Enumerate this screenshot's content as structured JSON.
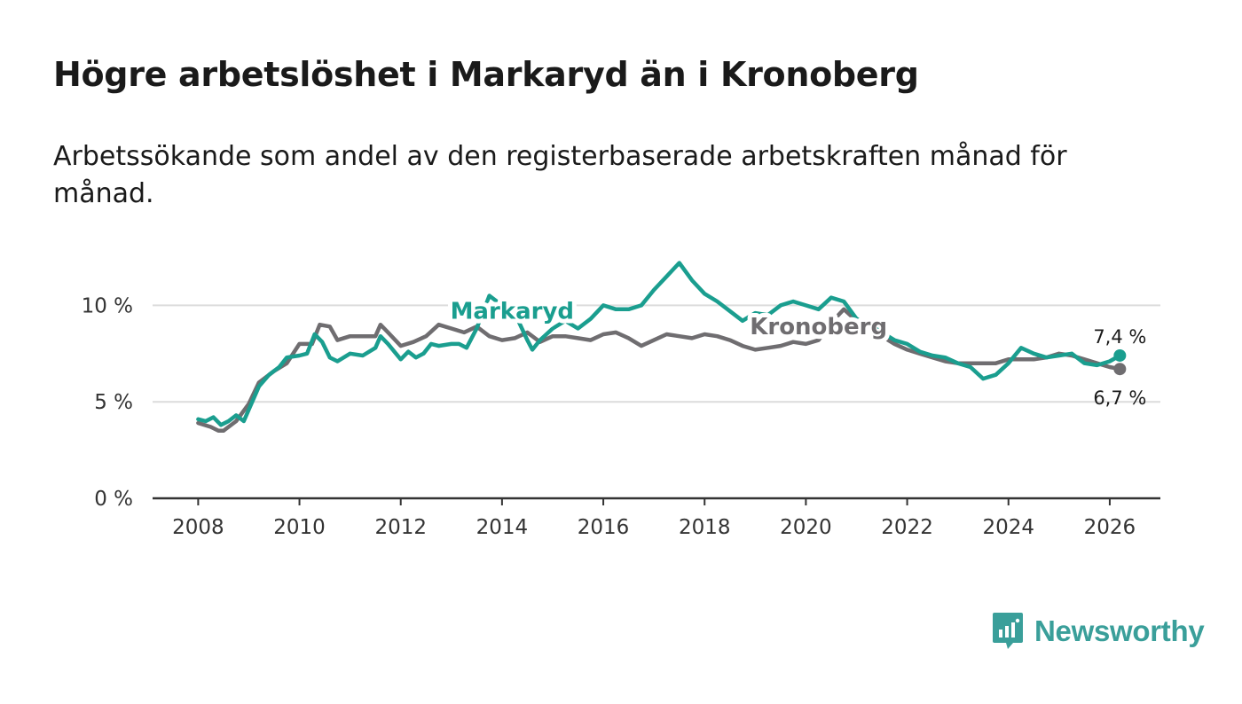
{
  "title": "Högre arbetslöshet i Markaryd än i Kronoberg",
  "subtitle": "Arbetssökande som andel av den registerbaserade arbetskraften månad för månad.",
  "brand": {
    "name": "Newsworthy",
    "icon": "newsworthy-logo-icon",
    "color": "#3a9f9a"
  },
  "chart_data": {
    "type": "line",
    "title": "Högre arbetslöshet i Markaryd än i Kronoberg",
    "xlabel": "",
    "ylabel": "",
    "ylim": [
      0,
      12.5
    ],
    "xlim": [
      2007.1,
      2027.0
    ],
    "grid": true,
    "y_ticks": [
      {
        "value": 0,
        "label": "0 %"
      },
      {
        "value": 5,
        "label": "5 %"
      },
      {
        "value": 10,
        "label": "10 %"
      }
    ],
    "x_ticks": [
      {
        "value": 2008,
        "label": "2008"
      },
      {
        "value": 2010,
        "label": "2010"
      },
      {
        "value": 2012,
        "label": "2012"
      },
      {
        "value": 2014,
        "label": "2014"
      },
      {
        "value": 2016,
        "label": "2016"
      },
      {
        "value": 2018,
        "label": "2018"
      },
      {
        "value": 2020,
        "label": "2020"
      },
      {
        "value": 2022,
        "label": "2022"
      },
      {
        "value": 2024,
        "label": "2024"
      },
      {
        "value": 2026,
        "label": "2026"
      }
    ],
    "series": [
      {
        "name": "Kronoberg",
        "label": "Kronoberg",
        "color": "#6f6d70",
        "end_label": "6,7 %",
        "label_at": [
          2020.25,
          8.5
        ],
        "points": [
          [
            2008.0,
            3.9
          ],
          [
            2008.25,
            3.7
          ],
          [
            2008.4,
            3.5
          ],
          [
            2008.5,
            3.5
          ],
          [
            2008.75,
            4.0
          ],
          [
            2009.0,
            4.9
          ],
          [
            2009.2,
            6.0
          ],
          [
            2009.5,
            6.6
          ],
          [
            2009.75,
            7.0
          ],
          [
            2010.0,
            8.0
          ],
          [
            2010.25,
            8.0
          ],
          [
            2010.4,
            9.0
          ],
          [
            2010.6,
            8.9
          ],
          [
            2010.75,
            8.2
          ],
          [
            2011.0,
            8.4
          ],
          [
            2011.25,
            8.4
          ],
          [
            2011.5,
            8.4
          ],
          [
            2011.6,
            9.0
          ],
          [
            2011.75,
            8.6
          ],
          [
            2012.0,
            7.9
          ],
          [
            2012.25,
            8.1
          ],
          [
            2012.5,
            8.4
          ],
          [
            2012.75,
            9.0
          ],
          [
            2013.0,
            8.8
          ],
          [
            2013.25,
            8.6
          ],
          [
            2013.5,
            8.9
          ],
          [
            2013.75,
            8.4
          ],
          [
            2014.0,
            8.2
          ],
          [
            2014.25,
            8.3
          ],
          [
            2014.5,
            8.6
          ],
          [
            2014.75,
            8.1
          ],
          [
            2015.0,
            8.4
          ],
          [
            2015.25,
            8.4
          ],
          [
            2015.5,
            8.3
          ],
          [
            2015.75,
            8.2
          ],
          [
            2016.0,
            8.5
          ],
          [
            2016.25,
            8.6
          ],
          [
            2016.5,
            8.3
          ],
          [
            2016.75,
            7.9
          ],
          [
            2017.0,
            8.2
          ],
          [
            2017.25,
            8.5
          ],
          [
            2017.5,
            8.4
          ],
          [
            2017.75,
            8.3
          ],
          [
            2018.0,
            8.5
          ],
          [
            2018.25,
            8.4
          ],
          [
            2018.5,
            8.2
          ],
          [
            2018.75,
            7.9
          ],
          [
            2019.0,
            7.7
          ],
          [
            2019.25,
            7.8
          ],
          [
            2019.5,
            7.9
          ],
          [
            2019.75,
            8.1
          ],
          [
            2020.0,
            8.0
          ],
          [
            2020.25,
            8.2
          ],
          [
            2020.5,
            9.1
          ],
          [
            2020.75,
            9.8
          ],
          [
            2021.0,
            9.2
          ],
          [
            2021.25,
            9.0
          ],
          [
            2021.5,
            8.4
          ],
          [
            2021.75,
            8.0
          ],
          [
            2022.0,
            7.7
          ],
          [
            2022.25,
            7.5
          ],
          [
            2022.5,
            7.3
          ],
          [
            2022.75,
            7.1
          ],
          [
            2023.0,
            7.0
          ],
          [
            2023.25,
            7.0
          ],
          [
            2023.5,
            7.0
          ],
          [
            2023.75,
            7.0
          ],
          [
            2024.0,
            7.2
          ],
          [
            2024.25,
            7.2
          ],
          [
            2024.5,
            7.2
          ],
          [
            2024.75,
            7.3
          ],
          [
            2025.0,
            7.5
          ],
          [
            2025.25,
            7.4
          ],
          [
            2025.5,
            7.2
          ],
          [
            2025.75,
            7.0
          ],
          [
            2026.0,
            6.8
          ],
          [
            2026.2,
            6.7
          ]
        ]
      },
      {
        "name": "Markaryd",
        "label": "Markaryd",
        "color": "#1a9e8f",
        "end_label": "7,4 %",
        "label_at": [
          2014.2,
          9.3
        ],
        "points": [
          [
            2008.0,
            4.1
          ],
          [
            2008.15,
            4.0
          ],
          [
            2008.3,
            4.2
          ],
          [
            2008.45,
            3.8
          ],
          [
            2008.6,
            4.0
          ],
          [
            2008.75,
            4.3
          ],
          [
            2008.9,
            4.0
          ],
          [
            2009.0,
            4.6
          ],
          [
            2009.2,
            5.8
          ],
          [
            2009.4,
            6.4
          ],
          [
            2009.6,
            6.8
          ],
          [
            2009.75,
            7.3
          ],
          [
            2010.0,
            7.4
          ],
          [
            2010.15,
            7.5
          ],
          [
            2010.3,
            8.5
          ],
          [
            2010.45,
            8.1
          ],
          [
            2010.6,
            7.3
          ],
          [
            2010.75,
            7.1
          ],
          [
            2011.0,
            7.5
          ],
          [
            2011.25,
            7.4
          ],
          [
            2011.5,
            7.8
          ],
          [
            2011.6,
            8.4
          ],
          [
            2011.75,
            8.0
          ],
          [
            2012.0,
            7.2
          ],
          [
            2012.15,
            7.6
          ],
          [
            2012.3,
            7.3
          ],
          [
            2012.45,
            7.5
          ],
          [
            2012.6,
            8.0
          ],
          [
            2012.75,
            7.9
          ],
          [
            2013.0,
            8.0
          ],
          [
            2013.15,
            8.0
          ],
          [
            2013.3,
            7.8
          ],
          [
            2013.5,
            8.8
          ],
          [
            2013.75,
            10.5
          ],
          [
            2014.0,
            10.0
          ],
          [
            2014.25,
            9.6
          ],
          [
            2014.5,
            8.2
          ],
          [
            2014.6,
            7.7
          ],
          [
            2014.75,
            8.2
          ],
          [
            2015.0,
            8.8
          ],
          [
            2015.25,
            9.2
          ],
          [
            2015.5,
            8.8
          ],
          [
            2015.75,
            9.3
          ],
          [
            2016.0,
            10.0
          ],
          [
            2016.25,
            9.8
          ],
          [
            2016.5,
            9.8
          ],
          [
            2016.75,
            10.0
          ],
          [
            2017.0,
            10.8
          ],
          [
            2017.25,
            11.5
          ],
          [
            2017.5,
            12.2
          ],
          [
            2017.75,
            11.3
          ],
          [
            2018.0,
            10.6
          ],
          [
            2018.25,
            10.2
          ],
          [
            2018.5,
            9.7
          ],
          [
            2018.75,
            9.2
          ],
          [
            2019.0,
            9.6
          ],
          [
            2019.25,
            9.5
          ],
          [
            2019.5,
            10.0
          ],
          [
            2019.75,
            10.2
          ],
          [
            2020.0,
            10.0
          ],
          [
            2020.25,
            9.8
          ],
          [
            2020.5,
            10.4
          ],
          [
            2020.75,
            10.2
          ],
          [
            2021.0,
            9.3
          ],
          [
            2021.25,
            9.0
          ],
          [
            2021.5,
            8.6
          ],
          [
            2021.75,
            8.2
          ],
          [
            2022.0,
            8.0
          ],
          [
            2022.25,
            7.6
          ],
          [
            2022.5,
            7.4
          ],
          [
            2022.75,
            7.3
          ],
          [
            2023.0,
            7.0
          ],
          [
            2023.25,
            6.8
          ],
          [
            2023.5,
            6.2
          ],
          [
            2023.75,
            6.4
          ],
          [
            2024.0,
            7.0
          ],
          [
            2024.25,
            7.8
          ],
          [
            2024.5,
            7.5
          ],
          [
            2024.75,
            7.3
          ],
          [
            2025.0,
            7.4
          ],
          [
            2025.25,
            7.5
          ],
          [
            2025.5,
            7.0
          ],
          [
            2025.75,
            6.9
          ],
          [
            2026.0,
            7.1
          ],
          [
            2026.2,
            7.4
          ]
        ]
      }
    ]
  }
}
